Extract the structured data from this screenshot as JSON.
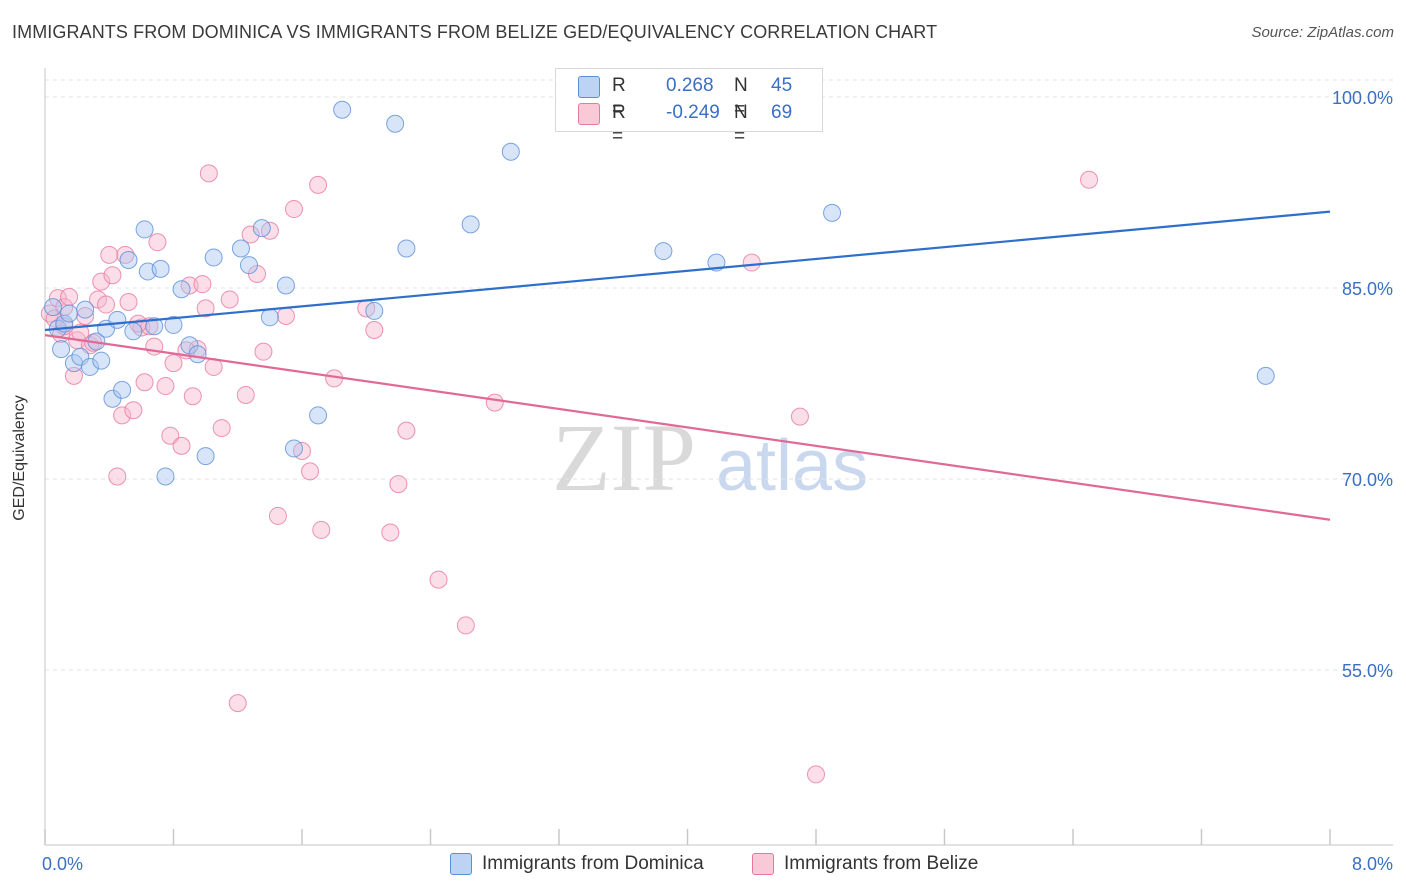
{
  "header": {
    "title": "IMMIGRANTS FROM DOMINICA VS IMMIGRANTS FROM BELIZE GED/EQUIVALENCY CORRELATION CHART",
    "source": "Source: ZipAtlas.com"
  },
  "legend_box": {
    "rows": [
      {
        "r_label": "R =",
        "r_value": "0.268",
        "n_label": "N =",
        "n_value": "45"
      },
      {
        "r_label": "R =",
        "r_value": "-0.249",
        "n_label": "N =",
        "n_value": "69"
      }
    ]
  },
  "watermark": {
    "zip": "ZIP",
    "atlas": "atlas"
  },
  "colors": {
    "blue_fill": "#a9c6f0",
    "blue_stroke": "#5b8fd9",
    "blue_line": "#2f6fcc",
    "pink_fill": "#f6b6cb",
    "pink_stroke": "#e8799e",
    "pink_line": "#e06a95",
    "grid": "#e3e3e3",
    "axis_text": "#3a6fc4"
  },
  "chart_data": {
    "type": "scatter",
    "title": "IMMIGRANTS FROM DOMINICA VS IMMIGRANTS FROM BELIZE GED/EQUIVALENCY CORRELATION CHART",
    "xlabel": "",
    "ylabel": "GED/Equivalency",
    "xlim": [
      0,
      8
    ],
    "ylim": [
      40,
      103
    ],
    "x_tick_labels": [
      "0.0%",
      "8.0%"
    ],
    "y_tick_labels": [
      "100.0%",
      "85.0%",
      "70.0%",
      "55.0%"
    ],
    "y_ticks": [
      100,
      85,
      70,
      55
    ],
    "grid": true,
    "legend_placement": "bottom",
    "series": [
      {
        "name": "Immigrants from Dominica",
        "color": "#a9c6f0",
        "trend": {
          "x": [
            0,
            8
          ],
          "y": [
            81.7,
            91.0
          ]
        },
        "points": [
          [
            0.05,
            83.5
          ],
          [
            0.08,
            81.8
          ],
          [
            0.1,
            80.2
          ],
          [
            0.12,
            82.2
          ],
          [
            0.18,
            79.1
          ],
          [
            0.22,
            79.6
          ],
          [
            0.28,
            78.8
          ],
          [
            0.32,
            80.8
          ],
          [
            0.35,
            79.3
          ],
          [
            0.38,
            81.8
          ],
          [
            0.42,
            76.3
          ],
          [
            0.48,
            77.0
          ],
          [
            0.52,
            87.2
          ],
          [
            0.55,
            81.6
          ],
          [
            0.62,
            89.6
          ],
          [
            0.64,
            86.3
          ],
          [
            0.68,
            82.0
          ],
          [
            0.72,
            86.5
          ],
          [
            0.75,
            70.2
          ],
          [
            0.8,
            82.1
          ],
          [
            0.85,
            84.9
          ],
          [
            0.9,
            80.5
          ],
          [
            0.95,
            79.8
          ],
          [
            1.0,
            71.8
          ],
          [
            1.05,
            87.4
          ],
          [
            1.22,
            88.1
          ],
          [
            1.27,
            86.8
          ],
          [
            1.35,
            89.7
          ],
          [
            1.4,
            82.7
          ],
          [
            1.5,
            85.2
          ],
          [
            1.55,
            72.4
          ],
          [
            1.7,
            75.0
          ],
          [
            1.85,
            99.0
          ],
          [
            2.05,
            83.2
          ],
          [
            2.18,
            97.9
          ],
          [
            2.25,
            88.1
          ],
          [
            2.65,
            90.0
          ],
          [
            2.9,
            95.7
          ],
          [
            3.85,
            87.9
          ],
          [
            4.18,
            87.0
          ],
          [
            4.9,
            90.9
          ],
          [
            7.6,
            78.1
          ],
          [
            0.15,
            83.0
          ],
          [
            0.25,
            83.3
          ],
          [
            0.45,
            82.5
          ]
        ]
      },
      {
        "name": "Immigrants from Belize",
        "color": "#f6b6cb",
        "trend": {
          "x": [
            0,
            8
          ],
          "y": [
            81.3,
            66.8
          ]
        },
        "points": [
          [
            0.03,
            83.0
          ],
          [
            0.06,
            82.6
          ],
          [
            0.08,
            84.2
          ],
          [
            0.1,
            81.4
          ],
          [
            0.12,
            83.5
          ],
          [
            0.15,
            84.3
          ],
          [
            0.18,
            78.1
          ],
          [
            0.2,
            80.9
          ],
          [
            0.25,
            82.8
          ],
          [
            0.28,
            80.5
          ],
          [
            0.3,
            80.7
          ],
          [
            0.33,
            84.1
          ],
          [
            0.35,
            85.5
          ],
          [
            0.38,
            83.7
          ],
          [
            0.4,
            87.6
          ],
          [
            0.42,
            86.0
          ],
          [
            0.45,
            70.2
          ],
          [
            0.48,
            75.0
          ],
          [
            0.5,
            87.6
          ],
          [
            0.52,
            83.9
          ],
          [
            0.55,
            75.4
          ],
          [
            0.6,
            81.9
          ],
          [
            0.62,
            77.6
          ],
          [
            0.65,
            82.0
          ],
          [
            0.68,
            80.4
          ],
          [
            0.7,
            88.6
          ],
          [
            0.75,
            77.3
          ],
          [
            0.78,
            73.4
          ],
          [
            0.8,
            79.1
          ],
          [
            0.85,
            72.6
          ],
          [
            0.9,
            85.2
          ],
          [
            0.92,
            76.5
          ],
          [
            0.95,
            80.2
          ],
          [
            0.98,
            85.3
          ],
          [
            1.0,
            83.4
          ],
          [
            1.02,
            94.0
          ],
          [
            1.05,
            78.8
          ],
          [
            1.1,
            74.0
          ],
          [
            1.15,
            84.1
          ],
          [
            1.2,
            52.4
          ],
          [
            1.25,
            76.6
          ],
          [
            1.28,
            89.2
          ],
          [
            1.32,
            86.1
          ],
          [
            1.36,
            80.0
          ],
          [
            1.4,
            89.5
          ],
          [
            1.45,
            67.1
          ],
          [
            1.5,
            82.8
          ],
          [
            1.55,
            91.2
          ],
          [
            1.6,
            72.2
          ],
          [
            1.65,
            70.6
          ],
          [
            1.7,
            93.1
          ],
          [
            1.72,
            66.0
          ],
          [
            1.8,
            77.9
          ],
          [
            2.0,
            83.4
          ],
          [
            2.05,
            81.7
          ],
          [
            2.15,
            65.8
          ],
          [
            2.2,
            69.6
          ],
          [
            2.25,
            73.8
          ],
          [
            2.45,
            62.1
          ],
          [
            2.62,
            58.5
          ],
          [
            2.8,
            76.0
          ],
          [
            4.4,
            87.0
          ],
          [
            4.7,
            74.9
          ],
          [
            4.8,
            46.8
          ],
          [
            6.5,
            93.5
          ],
          [
            0.12,
            82.0
          ],
          [
            0.22,
            81.5
          ],
          [
            0.58,
            82.2
          ],
          [
            0.88,
            80.1
          ]
        ]
      }
    ]
  },
  "bottom_legend": [
    {
      "label": "Immigrants from Dominica"
    },
    {
      "label": "Immigrants from Belize"
    }
  ]
}
